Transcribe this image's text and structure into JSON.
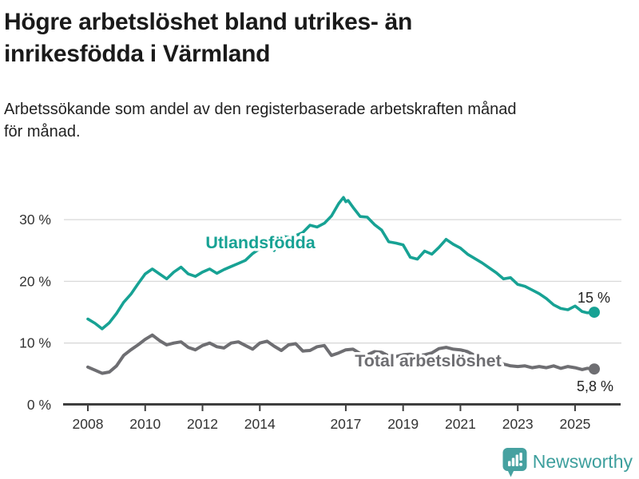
{
  "header": {
    "title": "Högre arbetslöshet bland utrikes- än inrikesfödda i Värmland",
    "subtitle": "Arbetssökande som andel av den registerbaserade arbetskraften månad för månad."
  },
  "footer": {
    "brand": "Newsworthy",
    "brand_color": "#3d9f9d"
  },
  "chart_data": {
    "type": "line",
    "title": "Högre arbetslöshet bland utrikes- än inrikesfödda i Värmland",
    "xlabel": "",
    "ylabel": "",
    "ylim": [
      0,
      35
    ],
    "xlim": [
      2007.2,
      2026.5
    ],
    "grid": "horizontal",
    "legend_position": "inline-labels",
    "y_ticks": [
      {
        "value": 0,
        "label": "0 %"
      },
      {
        "value": 10,
        "label": "10 %"
      },
      {
        "value": 20,
        "label": "20 %"
      },
      {
        "value": 30,
        "label": "30 %"
      }
    ],
    "x_ticks": [
      {
        "value": 2008,
        "label": "2008"
      },
      {
        "value": 2010,
        "label": "2010"
      },
      {
        "value": 2012,
        "label": "2012"
      },
      {
        "value": 2014,
        "label": "2014"
      },
      {
        "value": 2017,
        "label": "2017"
      },
      {
        "value": 2019,
        "label": "2019"
      },
      {
        "value": 2021,
        "label": "2021"
      },
      {
        "value": 2023,
        "label": "2023"
      },
      {
        "value": 2025,
        "label": "2025"
      }
    ],
    "series": [
      {
        "name": "Utlandsfödda",
        "color": "#17a294",
        "end_label": "15 %",
        "end_value": 15.0,
        "points": [
          [
            2008.0,
            13.9
          ],
          [
            2008.25,
            13.2
          ],
          [
            2008.5,
            12.3
          ],
          [
            2008.75,
            13.3
          ],
          [
            2009.0,
            14.8
          ],
          [
            2009.25,
            16.6
          ],
          [
            2009.5,
            17.9
          ],
          [
            2009.75,
            19.6
          ],
          [
            2010.0,
            21.2
          ],
          [
            2010.25,
            22.0
          ],
          [
            2010.5,
            21.2
          ],
          [
            2010.75,
            20.4
          ],
          [
            2011.0,
            21.5
          ],
          [
            2011.25,
            22.3
          ],
          [
            2011.5,
            21.2
          ],
          [
            2011.75,
            20.8
          ],
          [
            2012.0,
            21.5
          ],
          [
            2012.25,
            22.0
          ],
          [
            2012.5,
            21.3
          ],
          [
            2012.75,
            21.9
          ],
          [
            2013.0,
            22.4
          ],
          [
            2013.25,
            22.9
          ],
          [
            2013.5,
            23.4
          ],
          [
            2013.75,
            24.5
          ],
          [
            2014.0,
            25.3
          ],
          [
            2014.25,
            26.9
          ],
          [
            2014.5,
            25.0
          ],
          [
            2014.75,
            27.4
          ],
          [
            2015.0,
            27.1
          ],
          [
            2015.25,
            27.4
          ],
          [
            2015.5,
            27.9
          ],
          [
            2015.75,
            29.1
          ],
          [
            2016.0,
            28.8
          ],
          [
            2016.25,
            29.4
          ],
          [
            2016.5,
            30.6
          ],
          [
            2016.75,
            32.6
          ],
          [
            2016.92,
            33.6
          ],
          [
            2017.0,
            32.9
          ],
          [
            2017.08,
            33.1
          ],
          [
            2017.25,
            32.0
          ],
          [
            2017.5,
            30.5
          ],
          [
            2017.75,
            30.4
          ],
          [
            2018.0,
            29.2
          ],
          [
            2018.25,
            28.3
          ],
          [
            2018.5,
            26.4
          ],
          [
            2018.75,
            26.2
          ],
          [
            2019.0,
            25.9
          ],
          [
            2019.25,
            23.9
          ],
          [
            2019.5,
            23.6
          ],
          [
            2019.75,
            24.9
          ],
          [
            2020.0,
            24.4
          ],
          [
            2020.25,
            25.5
          ],
          [
            2020.5,
            26.8
          ],
          [
            2020.75,
            26.0
          ],
          [
            2021.0,
            25.4
          ],
          [
            2021.25,
            24.4
          ],
          [
            2021.5,
            23.7
          ],
          [
            2021.75,
            23.0
          ],
          [
            2022.0,
            22.2
          ],
          [
            2022.25,
            21.4
          ],
          [
            2022.5,
            20.4
          ],
          [
            2022.75,
            20.6
          ],
          [
            2023.0,
            19.5
          ],
          [
            2023.25,
            19.2
          ],
          [
            2023.5,
            18.6
          ],
          [
            2023.75,
            18.0
          ],
          [
            2024.0,
            17.2
          ],
          [
            2024.25,
            16.2
          ],
          [
            2024.5,
            15.6
          ],
          [
            2024.75,
            15.4
          ],
          [
            2025.0,
            16.0
          ],
          [
            2025.25,
            15.1
          ],
          [
            2025.42,
            14.9
          ],
          [
            2025.67,
            15.0
          ]
        ]
      },
      {
        "name": "Total arbetslöshet",
        "color": "#6e6e72",
        "end_label": "5,8 %",
        "end_value": 5.8,
        "points": [
          [
            2008.0,
            6.1
          ],
          [
            2008.25,
            5.6
          ],
          [
            2008.5,
            5.1
          ],
          [
            2008.75,
            5.3
          ],
          [
            2009.0,
            6.3
          ],
          [
            2009.25,
            8.0
          ],
          [
            2009.5,
            8.9
          ],
          [
            2009.75,
            9.7
          ],
          [
            2010.0,
            10.6
          ],
          [
            2010.25,
            11.3
          ],
          [
            2010.5,
            10.4
          ],
          [
            2010.75,
            9.7
          ],
          [
            2011.0,
            10.0
          ],
          [
            2011.25,
            10.2
          ],
          [
            2011.5,
            9.3
          ],
          [
            2011.75,
            8.9
          ],
          [
            2012.0,
            9.6
          ],
          [
            2012.25,
            10.0
          ],
          [
            2012.5,
            9.4
          ],
          [
            2012.75,
            9.2
          ],
          [
            2013.0,
            10.0
          ],
          [
            2013.25,
            10.2
          ],
          [
            2013.5,
            9.6
          ],
          [
            2013.75,
            9.0
          ],
          [
            2014.0,
            10.0
          ],
          [
            2014.25,
            10.3
          ],
          [
            2014.5,
            9.5
          ],
          [
            2014.75,
            8.8
          ],
          [
            2015.0,
            9.7
          ],
          [
            2015.25,
            9.9
          ],
          [
            2015.5,
            8.7
          ],
          [
            2015.75,
            8.8
          ],
          [
            2016.0,
            9.4
          ],
          [
            2016.25,
            9.6
          ],
          [
            2016.5,
            8.0
          ],
          [
            2016.75,
            8.4
          ],
          [
            2017.0,
            8.9
          ],
          [
            2017.25,
            9.0
          ],
          [
            2017.5,
            8.3
          ],
          [
            2017.75,
            8.1
          ],
          [
            2018.0,
            8.6
          ],
          [
            2018.25,
            8.5
          ],
          [
            2018.5,
            7.9
          ],
          [
            2018.75,
            7.8
          ],
          [
            2019.0,
            8.1
          ],
          [
            2019.25,
            8.2
          ],
          [
            2019.5,
            7.9
          ],
          [
            2019.75,
            8.1
          ],
          [
            2020.0,
            8.4
          ],
          [
            2020.25,
            9.1
          ],
          [
            2020.5,
            9.3
          ],
          [
            2020.75,
            9.0
          ],
          [
            2021.0,
            8.9
          ],
          [
            2021.25,
            8.6
          ],
          [
            2021.5,
            8.0
          ],
          [
            2021.75,
            7.6
          ],
          [
            2022.0,
            7.3
          ],
          [
            2022.25,
            7.0
          ],
          [
            2022.5,
            6.6
          ],
          [
            2022.75,
            6.3
          ],
          [
            2023.0,
            6.2
          ],
          [
            2023.25,
            6.3
          ],
          [
            2023.5,
            6.0
          ],
          [
            2023.75,
            6.2
          ],
          [
            2024.0,
            6.0
          ],
          [
            2024.25,
            6.3
          ],
          [
            2024.5,
            5.9
          ],
          [
            2024.75,
            6.2
          ],
          [
            2025.0,
            6.0
          ],
          [
            2025.25,
            5.7
          ],
          [
            2025.42,
            5.9
          ],
          [
            2025.67,
            5.8
          ]
        ]
      }
    ]
  }
}
